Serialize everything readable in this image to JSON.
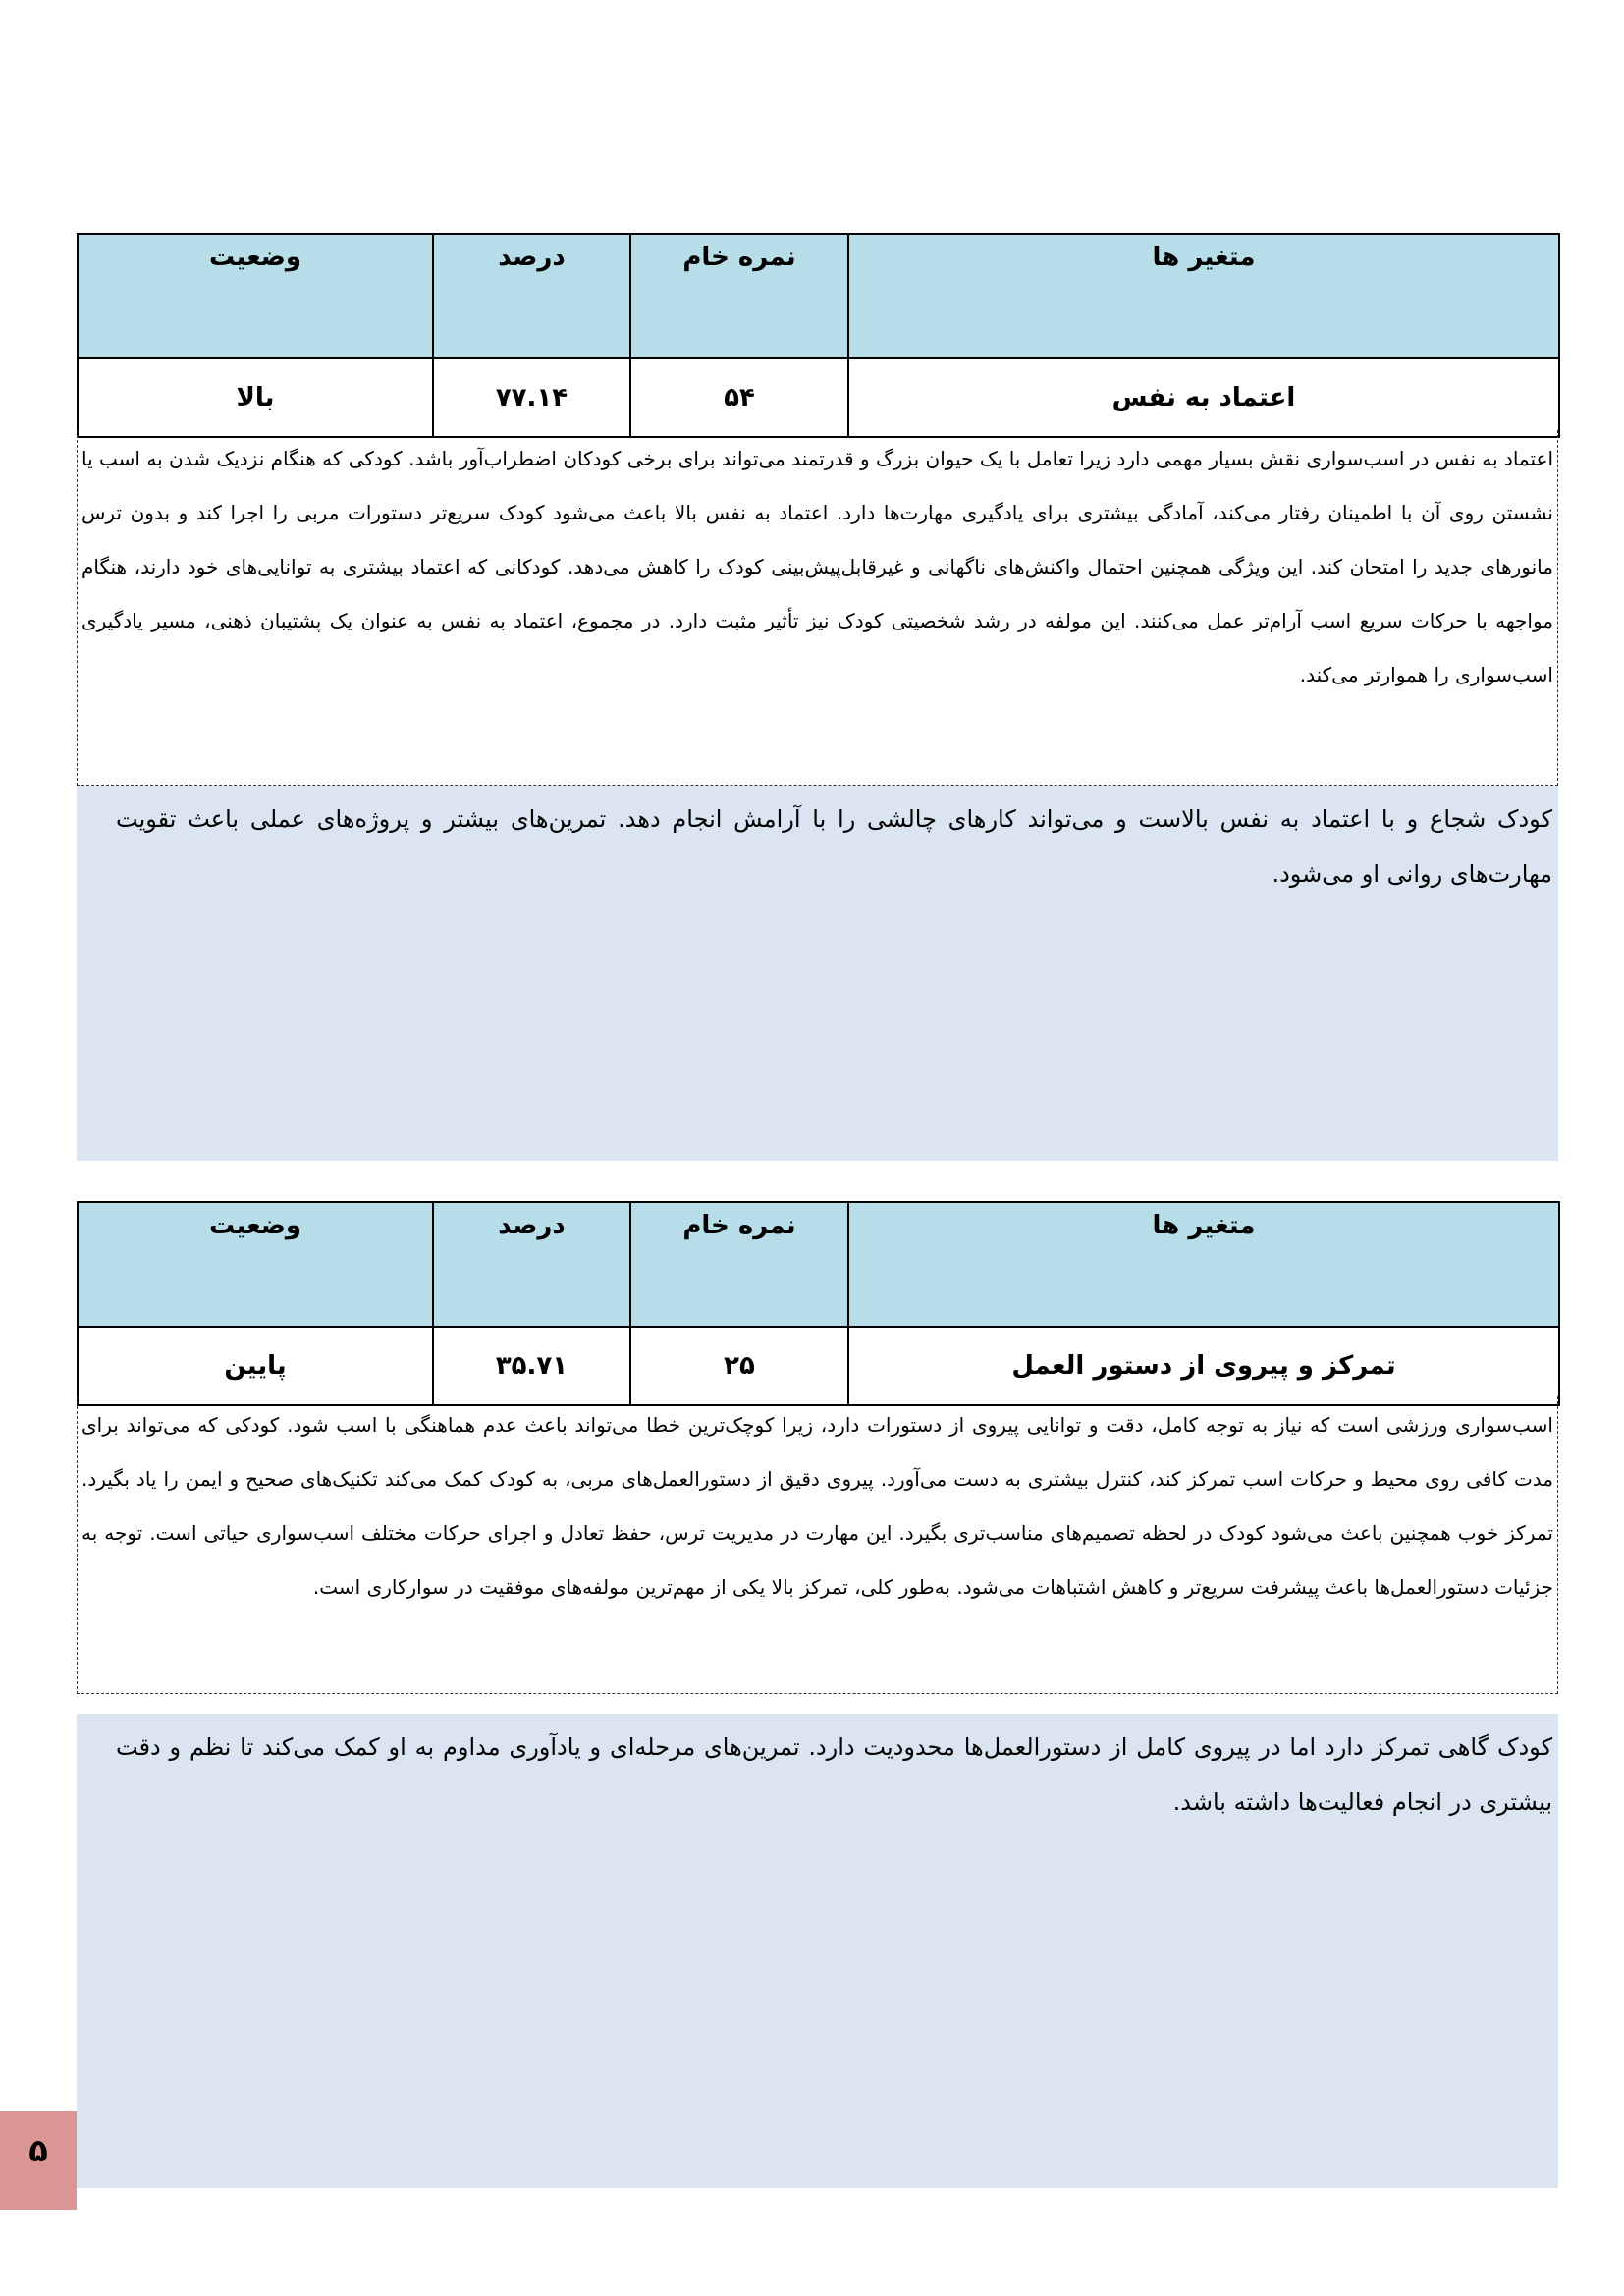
{
  "headers": {
    "variable": "متغیر ها",
    "raw_score": "نمره خام",
    "percent": "درصد",
    "status": "وضعیت"
  },
  "sections": [
    {
      "variable": "اعتماد به نفس",
      "raw_score": "۵۴",
      "percent": "۷۷.۱۴",
      "status": "بالا",
      "description": "اعتماد به نفس در اسب‌سواری نقش بسیار مهمی دارد زیرا تعامل با یک حیوان بزرگ و قدرتمند می‌تواند برای برخی کودکان اضطراب‌آور باشد. کودکی که هنگام نزدیک شدن به اسب یا نشستن روی آن با اطمینان رفتار می‌کند، آمادگی بیشتری برای یادگیری مهارت‌ها دارد. اعتماد به نفس بالا باعث می‌شود کودک سریع‌تر دستورات مربی را اجرا کند و بدون ترس مانورهای جدید را امتحان کند. این ویژگی همچنین احتمال واکنش‌های ناگهانی و غیرقابل‌پیش‌بینی کودک را کاهش می‌دهد. کودکانی که اعتماد بیشتری به توانایی‌های خود دارند، هنگام مواجهه با حرکات سریع اسب آرام‌تر عمل می‌کنند. این مولفه در رشد شخصیتی کودک نیز تأثیر مثبت دارد. در مجموع، اعتماد به نفس به عنوان یک پشتیبان ذهنی، مسیر یادگیری اسب‌سواری را هموارتر می‌کند.",
      "note": "کودک شجاع و با اعتماد به نفس بالاست و می‌تواند کارهای چالشی را با آرامش انجام دهد. تمرین‌های بیشتر و پروژه‌های عملی باعث تقویت مهارت‌های روانی او می‌شود."
    },
    {
      "variable": "تمرکز و پیروی از دستور العمل",
      "raw_score": "۲۵",
      "percent": "۳۵.۷۱",
      "status": "پایین",
      "description": "اسب‌سواری ورزشی است که نیاز به توجه کامل، دقت و توانایی پیروی از دستورات دارد، زیرا کوچک‌ترین خطا می‌تواند باعث عدم هماهنگی با اسب شود. کودکی که می‌تواند برای مدت کافی روی محیط و حرکات اسب تمرکز کند، کنترل بیشتری به دست می‌آورد. پیروی دقیق از دستورالعمل‌های مربی، به کودک کمک می‌کند تکنیک‌های صحیح و ایمن را یاد بگیرد. تمرکز خوب همچنین باعث می‌شود کودک در لحظه تصمیم‌های مناسب‌تری بگیرد. این مهارت در مدیریت ترس، حفظ تعادل و اجرای حرکات مختلف اسب‌سواری حیاتی است. توجه به جزئیات دستورالعمل‌ها باعث پیشرفت سریع‌تر و کاهش اشتباهات می‌شود. به‌طور کلی، تمرکز بالا یکی از مهم‌ترین مولفه‌های موفقیت در سوارکاری است.",
      "note": "کودک گاهی تمرکز دارد اما در پیروی کامل از دستورالعمل‌ها محدودیت دارد. تمرین‌های مرحله‌ای و یادآوری مداوم به او کمک می‌کند تا نظم و دقت بیشتری در انجام فعالیت‌ها داشته باشد."
    }
  ],
  "page_number": "۵",
  "colors": {
    "header_bg": "#b7dde8",
    "note_bg": "#dbe5f1",
    "page_number_bg": "#d99694"
  }
}
